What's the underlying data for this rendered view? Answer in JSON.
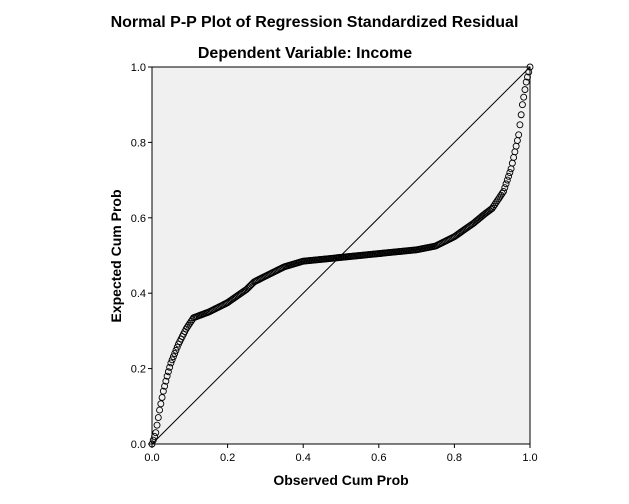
{
  "chart_data": {
    "type": "scatter",
    "title": "Normal P-P Plot of Regression Standardized Residual",
    "subtitle": "Dependent Variable: Income",
    "xlabel": "Observed Cum Prob",
    "ylabel": "Expected Cum Prob",
    "xlim": [
      0,
      1
    ],
    "ylim": [
      0,
      1
    ],
    "xticks": [
      "0.0",
      "0.2",
      "0.4",
      "0.6",
      "0.8",
      "1.0"
    ],
    "yticks": [
      "0.0",
      "0.2",
      "0.4",
      "0.6",
      "0.8",
      "1.0"
    ],
    "grid": false,
    "reference_line": [
      [
        0,
        0
      ],
      [
        1,
        1
      ]
    ],
    "colors": {
      "plot_background": "#f0f0f0",
      "marker_stroke": "#000000",
      "line": "#000000"
    },
    "curve_knots": [
      [
        0.0,
        0.0
      ],
      [
        0.01,
        0.03
      ],
      [
        0.02,
        0.09
      ],
      [
        0.03,
        0.14
      ],
      [
        0.04,
        0.18
      ],
      [
        0.05,
        0.215
      ],
      [
        0.07,
        0.265
      ],
      [
        0.09,
        0.305
      ],
      [
        0.11,
        0.335
      ],
      [
        0.15,
        0.35
      ],
      [
        0.2,
        0.375
      ],
      [
        0.25,
        0.41
      ],
      [
        0.27,
        0.43
      ],
      [
        0.3,
        0.445
      ],
      [
        0.35,
        0.47
      ],
      [
        0.4,
        0.485
      ],
      [
        0.45,
        0.49
      ],
      [
        0.5,
        0.495
      ],
      [
        0.6,
        0.505
      ],
      [
        0.7,
        0.515
      ],
      [
        0.75,
        0.525
      ],
      [
        0.8,
        0.55
      ],
      [
        0.85,
        0.585
      ],
      [
        0.88,
        0.61
      ],
      [
        0.9,
        0.625
      ],
      [
        0.93,
        0.67
      ],
      [
        0.95,
        0.73
      ],
      [
        0.97,
        0.82
      ],
      [
        0.98,
        0.9
      ],
      [
        0.99,
        0.96
      ],
      [
        1.0,
        1.0
      ]
    ]
  }
}
